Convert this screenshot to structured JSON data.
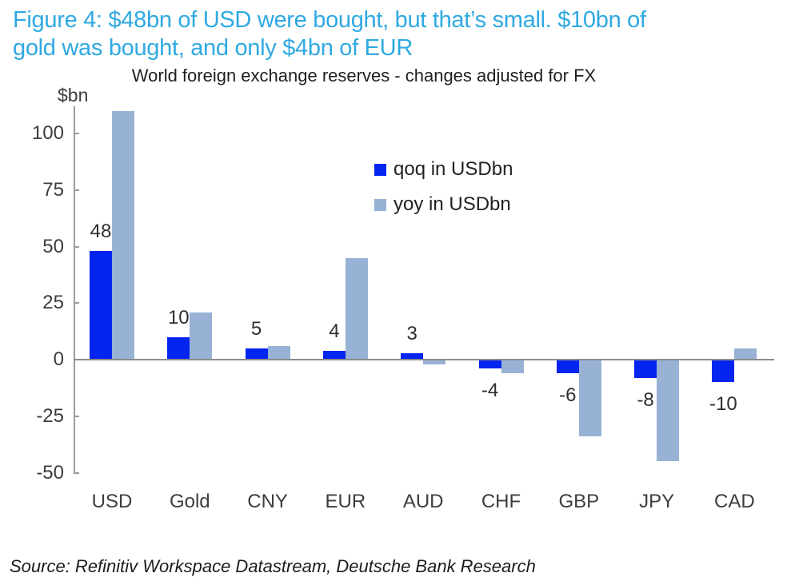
{
  "figure_caption": {
    "line1": "Figure 4: $48bn of USD were bought, but that’s small. $10bn of",
    "line2": "gold was bought, and only $4bn of EUR"
  },
  "chart_data": {
    "type": "bar",
    "title": "World foreign exchange reserves - changes adjusted for FX",
    "unit_label": "$bn",
    "categories": [
      "USD",
      "Gold",
      "CNY",
      "EUR",
      "AUD",
      "CHF",
      "GBP",
      "JPY",
      "CAD"
    ],
    "series": [
      {
        "name": "qoq in USDbn",
        "color": "#0424f0",
        "values": [
          48,
          10,
          5,
          4,
          3,
          -4,
          -6,
          -8,
          -10
        ]
      },
      {
        "name": "yoy in USDbn",
        "color": "#97b2d5",
        "values": [
          110,
          21,
          6,
          45,
          -2,
          -6,
          -34,
          -45,
          5
        ]
      }
    ],
    "bar_labels": [
      "48",
      "10",
      "5",
      "4",
      "3",
      "-4",
      "-6",
      "-8",
      "-10"
    ],
    "y_ticks": [
      100,
      75,
      50,
      25,
      0,
      -25,
      -50
    ],
    "ylim": [
      -50,
      115
    ],
    "grid": false,
    "legend_position": "upper middle"
  },
  "source": "Source: Refinitiv Workspace Datastream, Deutsche Bank Research",
  "colors": {
    "caption_blue": "#2fa9e1",
    "qoq_blue": "#0424f0",
    "yoy_blue": "#97b2d5",
    "axis_gray": "#9b9b9b",
    "text_dark": "#3d3d3d"
  }
}
